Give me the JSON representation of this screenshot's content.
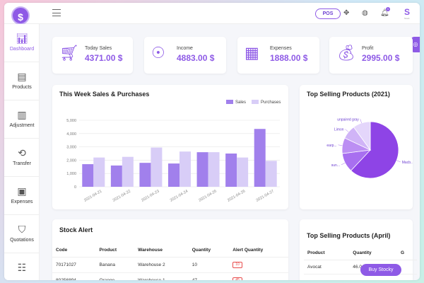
{
  "brand": {
    "logo_text": "$",
    "mini": "S",
    "mini_sub": "Stock"
  },
  "topbar": {
    "pos_label": "POS",
    "notification_count": "1"
  },
  "sidebar": {
    "items": [
      {
        "label": "Dashboard",
        "icon": "chart-icon"
      },
      {
        "label": "Products",
        "icon": "box-icon"
      },
      {
        "label": "Adjustment",
        "icon": "adjust-icon"
      },
      {
        "label": "Transfer",
        "icon": "transfer-icon"
      },
      {
        "label": "Expenses",
        "icon": "wallet-icon"
      },
      {
        "label": "Quotations",
        "icon": "basket-icon"
      }
    ]
  },
  "stats": [
    {
      "label": "Today Sales",
      "value": "4371.00 $",
      "icon": "cart-icon"
    },
    {
      "label": "Income",
      "value": "4883.00 $",
      "icon": "hand-coins-icon"
    },
    {
      "label": "Expenses",
      "value": "1888.00 $",
      "icon": "cash-icon"
    },
    {
      "label": "Profit",
      "value": "2995.00 $",
      "icon": "money-bag-icon"
    }
  ],
  "weekly_chart": {
    "title": "This Week Sales & Purchases",
    "legend": [
      "Sales",
      "Purchases"
    ]
  },
  "chart_data": [
    {
      "type": "bar",
      "title": "This Week Sales & Purchases",
      "categories": [
        "2021-04-21",
        "2021-04-22",
        "2021-04-23",
        "2021-04-24",
        "2021-04-25",
        "2021-04-26",
        "2021-04-27"
      ],
      "series": [
        {
          "name": "Sales",
          "values": [
            1700,
            1600,
            1800,
            1750,
            2600,
            2500,
            4350
          ]
        },
        {
          "name": "Purchases",
          "values": [
            2200,
            2250,
            2950,
            2650,
            2600,
            2200,
            1950
          ]
        }
      ],
      "ylim": [
        0,
        5000
      ],
      "yticks": [
        "0",
        "1,000",
        "2,000",
        "3,000",
        "4,000",
        "5,000"
      ],
      "grid": true,
      "legend_position": "top-right",
      "colors": [
        "#a180ec",
        "#d8cdf7"
      ]
    },
    {
      "type": "pie",
      "title": "Top Selling Products (2021)",
      "labels": [
        "Macb...",
        "sun...",
        "earp...",
        "Limon",
        "unpaired gray"
      ],
      "values": [
        62,
        11,
        9,
        8,
        10
      ],
      "colors": [
        "#8e44e6",
        "#a86ff0",
        "#bc8ff3",
        "#d0b4f7",
        "#e4d6fb"
      ]
    }
  ],
  "pie_title": "Top Selling Products (2021)",
  "stock_alert": {
    "title": "Stock Alert",
    "headers": [
      "Code",
      "Product",
      "Warehouse",
      "Quantity",
      "Alert Quantity"
    ],
    "rows": [
      [
        "70171027",
        "Banana",
        "Warehouse 2",
        "10",
        "10"
      ],
      [
        "80256894",
        "Orange",
        "Warehouse 1",
        "47",
        "45"
      ]
    ]
  },
  "top_april": {
    "title": "Top Selling Products (April)",
    "headers": [
      "Product",
      "Quantity",
      "G"
    ],
    "rows": [
      [
        "Avocat",
        "46.0"
      ]
    ]
  },
  "buy_button": "Buy Stocky"
}
